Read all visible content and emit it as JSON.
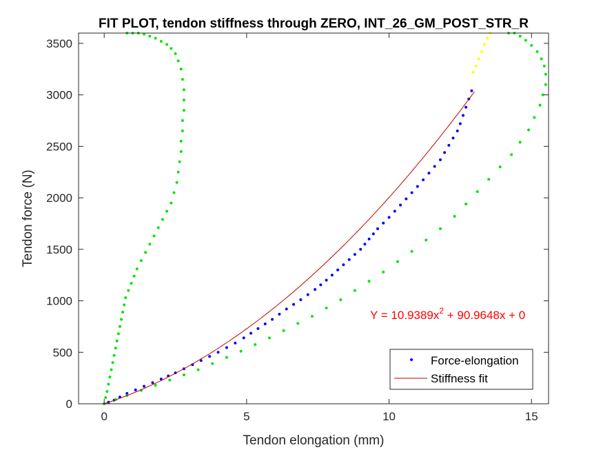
{
  "chart_data": {
    "type": "scatter",
    "title": "FIT PLOT, tendon stiffness through ZERO, INT_26_GM_POST_STR_R",
    "xlabel": "Tendon elongation (mm)",
    "ylabel": "Tendon force (N)",
    "xlim": [
      -0.9,
      15.6
    ],
    "ylim": [
      0,
      3600
    ],
    "xticks": [
      0,
      5,
      10,
      15
    ],
    "xtick_labels": [
      "0",
      "5",
      "10",
      "15"
    ],
    "yticks": [
      0,
      500,
      1000,
      1500,
      2000,
      2500,
      3000,
      3500
    ],
    "ytick_labels": [
      "0",
      "500",
      "1000",
      "1500",
      "2000",
      "2500",
      "3000",
      "3500"
    ],
    "grid": false,
    "legend": {
      "placement": "bottom-right",
      "entries": [
        {
          "label": "Force-elongation",
          "marker": "dot",
          "color": "#0000ff"
        },
        {
          "label": "Stiffness fit",
          "marker": "line",
          "color": "#c00000"
        }
      ]
    },
    "annotation": {
      "prefix": "Y = 10.9389x",
      "sup": "2",
      "suffix": " + 90.9648x + 0",
      "color": "#ff0000"
    },
    "fit": {
      "a": 10.9389,
      "b": 90.9648,
      "c": 0,
      "x_range": [
        0,
        13.0
      ],
      "color": "#c00000"
    },
    "series": [
      {
        "name": "Force-elongation",
        "color": "#0000ff",
        "x": [
          0.0,
          0.15,
          0.35,
          0.55,
          0.8,
          1.1,
          1.4,
          1.7,
          2.0,
          2.25,
          2.5,
          2.8,
          3.1,
          3.4,
          3.7,
          4.0,
          4.3,
          4.6,
          4.9,
          5.15,
          5.4,
          5.65,
          5.9,
          6.15,
          6.4,
          6.65,
          6.9,
          7.15,
          7.4,
          7.6,
          7.8,
          8.0,
          8.2,
          8.4,
          8.6,
          8.8,
          9.0,
          9.15,
          9.3,
          9.45,
          9.6,
          9.8,
          10.0,
          10.2,
          10.4,
          10.6,
          10.8,
          11.0,
          11.2,
          11.4,
          11.6,
          11.8,
          11.95,
          12.1,
          12.25,
          12.4,
          12.5,
          12.6,
          12.7,
          12.8,
          12.9
        ],
        "y": [
          0,
          15,
          35,
          65,
          100,
          135,
          170,
          205,
          240,
          270,
          300,
          340,
          380,
          420,
          460,
          500,
          545,
          590,
          640,
          685,
          730,
          775,
          820,
          870,
          920,
          965,
          1010,
          1060,
          1110,
          1155,
          1200,
          1250,
          1300,
          1350,
          1400,
          1450,
          1500,
          1550,
          1600,
          1650,
          1700,
          1755,
          1810,
          1870,
          1930,
          1990,
          2050,
          2110,
          2175,
          2240,
          2305,
          2370,
          2440,
          2510,
          2580,
          2650,
          2720,
          2800,
          2880,
          2960,
          3040
        ]
      },
      {
        "name": "",
        "color": "#ffff00",
        "x": [
          12.95,
          13.05,
          13.15,
          13.25,
          13.35,
          13.45,
          13.55
        ],
        "y": [
          3220,
          3280,
          3350,
          3420,
          3490,
          3550,
          3600
        ]
      },
      {
        "name": "",
        "color": "#00e600",
        "x": [
          0.0,
          0.05,
          0.1,
          0.15,
          0.2,
          0.25,
          0.3,
          0.35,
          0.4,
          0.45,
          0.5,
          0.55,
          0.6,
          0.65,
          0.7,
          0.75,
          0.85,
          0.95,
          1.05,
          1.15,
          1.3,
          1.45,
          1.6,
          1.75,
          1.9,
          2.05,
          2.2,
          2.35,
          2.45,
          2.55,
          2.6,
          2.65,
          2.7,
          2.7,
          2.75,
          2.75,
          2.8,
          2.8,
          2.8,
          2.75,
          2.7,
          2.6,
          2.5,
          2.35,
          2.2,
          2.0,
          1.8,
          1.6,
          1.4,
          1.2,
          1.0,
          0.8
        ],
        "y": [
          0,
          60,
          120,
          190,
          260,
          330,
          400,
          470,
          540,
          610,
          680,
          750,
          820,
          890,
          960,
          1030,
          1100,
          1170,
          1240,
          1310,
          1390,
          1470,
          1550,
          1630,
          1710,
          1790,
          1870,
          1950,
          2050,
          2150,
          2250,
          2350,
          2450,
          2550,
          2650,
          2750,
          2850,
          2950,
          3050,
          3150,
          3250,
          3330,
          3400,
          3450,
          3490,
          3520,
          3550,
          3570,
          3590,
          3600,
          3600,
          3600
        ]
      },
      {
        "name": "",
        "color": "#00e600",
        "x": [
          0.0,
          0.4,
          0.8,
          1.3,
          1.8,
          2.3,
          2.8,
          3.3,
          3.8,
          4.3,
          4.8,
          5.3,
          5.8,
          6.3,
          6.8,
          7.3,
          7.8,
          8.3,
          8.8,
          9.3,
          9.8,
          10.3,
          10.8,
          11.3,
          11.8,
          12.3,
          12.7,
          13.1,
          13.5,
          13.9,
          14.3,
          14.6,
          14.9,
          15.1,
          15.3,
          15.4,
          15.5,
          15.5,
          15.45,
          15.35,
          15.2,
          15.0,
          14.8,
          14.6,
          14.4,
          14.2
        ],
        "y": [
          0,
          40,
          80,
          130,
          180,
          230,
          280,
          330,
          390,
          450,
          510,
          575,
          640,
          710,
          780,
          850,
          930,
          1010,
          1100,
          1190,
          1280,
          1380,
          1480,
          1590,
          1700,
          1820,
          1940,
          2060,
          2180,
          2300,
          2420,
          2540,
          2660,
          2780,
          2900,
          3000,
          3100,
          3200,
          3280,
          3350,
          3420,
          3480,
          3530,
          3570,
          3600,
          3600
        ]
      }
    ]
  }
}
